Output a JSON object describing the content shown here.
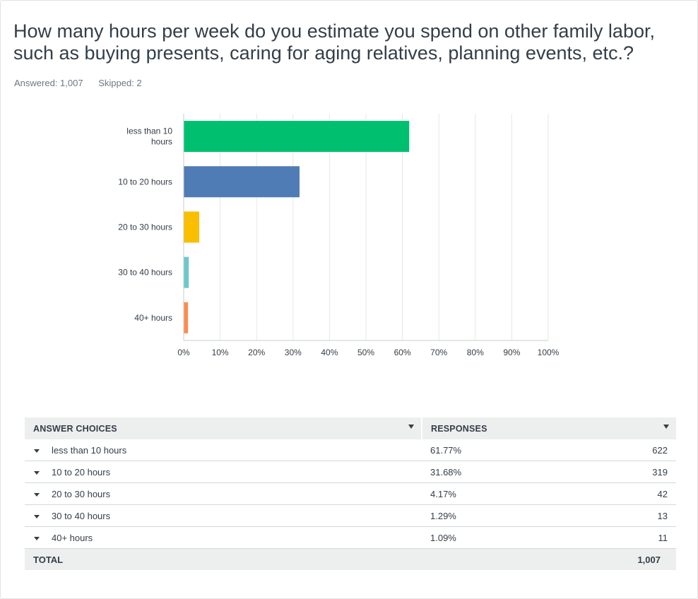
{
  "question": {
    "title": "How many hours per week do you estimate you spend on other family labor, such as buying presents, caring for aging relatives, planning events, etc.?",
    "answered": "Answered: 1,007",
    "skipped": "Skipped: 2"
  },
  "chart_data": {
    "type": "bar",
    "orientation": "horizontal",
    "categories": [
      [
        "less than 10",
        "hours"
      ],
      [
        "10 to 20 hours"
      ],
      [
        "20 to 30 hours"
      ],
      [
        "30 to 40 hours"
      ],
      [
        "40+ hours"
      ]
    ],
    "values": [
      61.77,
      31.68,
      4.17,
      1.29,
      1.09
    ],
    "colors": [
      "#00bf6f",
      "#507cb6",
      "#f9be00",
      "#6bc8cd",
      "#ff8b4f"
    ],
    "xlim": [
      0,
      100
    ],
    "xticks": [
      "0%",
      "10%",
      "20%",
      "30%",
      "40%",
      "50%",
      "60%",
      "70%",
      "80%",
      "90%",
      "100%"
    ],
    "grid": true,
    "title": "",
    "xlabel": "",
    "ylabel": ""
  },
  "table": {
    "header": {
      "choices": "ANSWER CHOICES",
      "responses": "RESPONSES"
    },
    "rows": [
      {
        "choice": "less than 10 hours",
        "percent": "61.77%",
        "count": "622"
      },
      {
        "choice": "10 to 20 hours",
        "percent": "31.68%",
        "count": "319"
      },
      {
        "choice": "20 to 30 hours",
        "percent": "4.17%",
        "count": "42"
      },
      {
        "choice": "30 to 40 hours",
        "percent": "1.29%",
        "count": "13"
      },
      {
        "choice": "40+ hours",
        "percent": "1.09%",
        "count": "11"
      }
    ],
    "total": {
      "label": "TOTAL",
      "count": "1,007"
    }
  }
}
